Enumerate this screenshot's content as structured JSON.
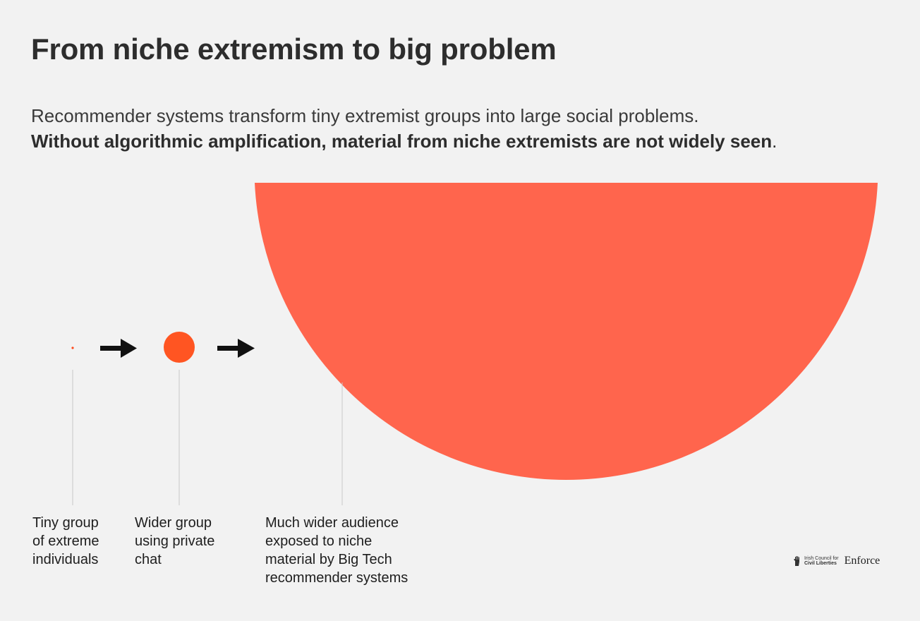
{
  "title": "From niche extremism to big problem",
  "subtitle": {
    "line1": "Recommender systems transform tiny extremist groups into large social problems.",
    "line2_bold": "Without algorithmic amplification, material from niche extremists are not widely seen",
    "line2_end": "."
  },
  "stages": [
    {
      "lines": [
        "Tiny group",
        "of extreme",
        "individuals"
      ]
    },
    {
      "lines": [
        "Wider group",
        "using private",
        "chat"
      ]
    },
    {
      "lines": [
        "Much wider audience",
        "exposed to niche",
        "material by Big Tech",
        "recommender systems"
      ]
    }
  ],
  "colors": {
    "tiny_dot": "#ff4a1c",
    "medium_circle": "#ff5522",
    "large_circle": "#ff654d",
    "arrow": "#111111",
    "leader_line": "#c8c8c8"
  },
  "logo": {
    "org_line1": "Irish Council for",
    "org_line2": "Civil Liberties",
    "brand": "Enforce",
    "icon": "raised-hand-icon"
  }
}
